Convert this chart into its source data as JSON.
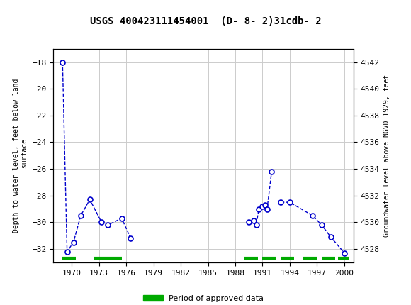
{
  "title": "USGS 400423111454001  (D- 8- 2)31cdb- 2",
  "xlabel": "",
  "ylabel_left": "Depth to water level, feet below land\n surface",
  "ylabel_right": "Groundwater level above NGVD 1929, feet",
  "xlim": [
    1968,
    2001
  ],
  "ylim_left": [
    -33,
    -17
  ],
  "ylim_right": [
    4527,
    4543
  ],
  "xticks": [
    1970,
    1973,
    1976,
    1979,
    1982,
    1985,
    1988,
    1991,
    1994,
    1997,
    2000
  ],
  "yticks_left": [
    -32,
    -30,
    -28,
    -26,
    -24,
    -22,
    -20,
    -18
  ],
  "yticks_right": [
    4542,
    4540,
    4538,
    4536,
    4534,
    4532,
    4530,
    4528
  ],
  "data_points": [
    [
      1969.0,
      -18.0
    ],
    [
      1969.5,
      -32.2
    ],
    [
      1970.2,
      -31.5
    ],
    [
      1971.0,
      -29.5
    ],
    [
      1972.0,
      -28.3
    ],
    [
      1973.3,
      -30.0
    ],
    [
      1974.0,
      -30.2
    ],
    [
      1975.5,
      -29.7
    ],
    [
      1976.5,
      -31.2
    ],
    [
      1989.5,
      -30.0
    ],
    [
      1990.0,
      -29.9
    ],
    [
      1990.3,
      -30.2
    ],
    [
      1990.6,
      -29.0
    ],
    [
      1991.0,
      -28.8
    ],
    [
      1991.3,
      -28.7
    ],
    [
      1991.5,
      -29.0
    ],
    [
      1992.0,
      -26.2
    ],
    [
      1993.0,
      -28.5
    ],
    [
      1994.0,
      -28.5
    ],
    [
      1996.5,
      -29.5
    ],
    [
      1997.5,
      -30.2
    ],
    [
      1998.5,
      -31.1
    ],
    [
      2000.0,
      -32.3
    ]
  ],
  "connected_groups": [
    [
      0,
      1,
      2,
      3,
      4,
      5,
      6,
      7,
      8
    ],
    [
      9,
      10,
      11,
      12,
      13,
      14,
      15,
      16
    ],
    [
      17,
      18,
      19,
      20,
      21,
      22
    ]
  ],
  "approved_periods": [
    [
      1969.0,
      1970.5
    ],
    [
      1972.5,
      1975.5
    ],
    [
      1989.0,
      1990.5
    ],
    [
      1991.0,
      1992.5
    ],
    [
      1993.0,
      1994.5
    ],
    [
      1995.5,
      1997.0
    ],
    [
      1997.5,
      1999.0
    ],
    [
      1999.3,
      2000.5
    ]
  ],
  "line_color": "#0000CC",
  "marker_face": "#FFFFFF",
  "marker_edge": "#0000CC",
  "approved_color": "#00AA00",
  "header_bg": "#1B6B3A",
  "background_color": "#FFFFFF",
  "plot_bg": "#FFFFFF"
}
